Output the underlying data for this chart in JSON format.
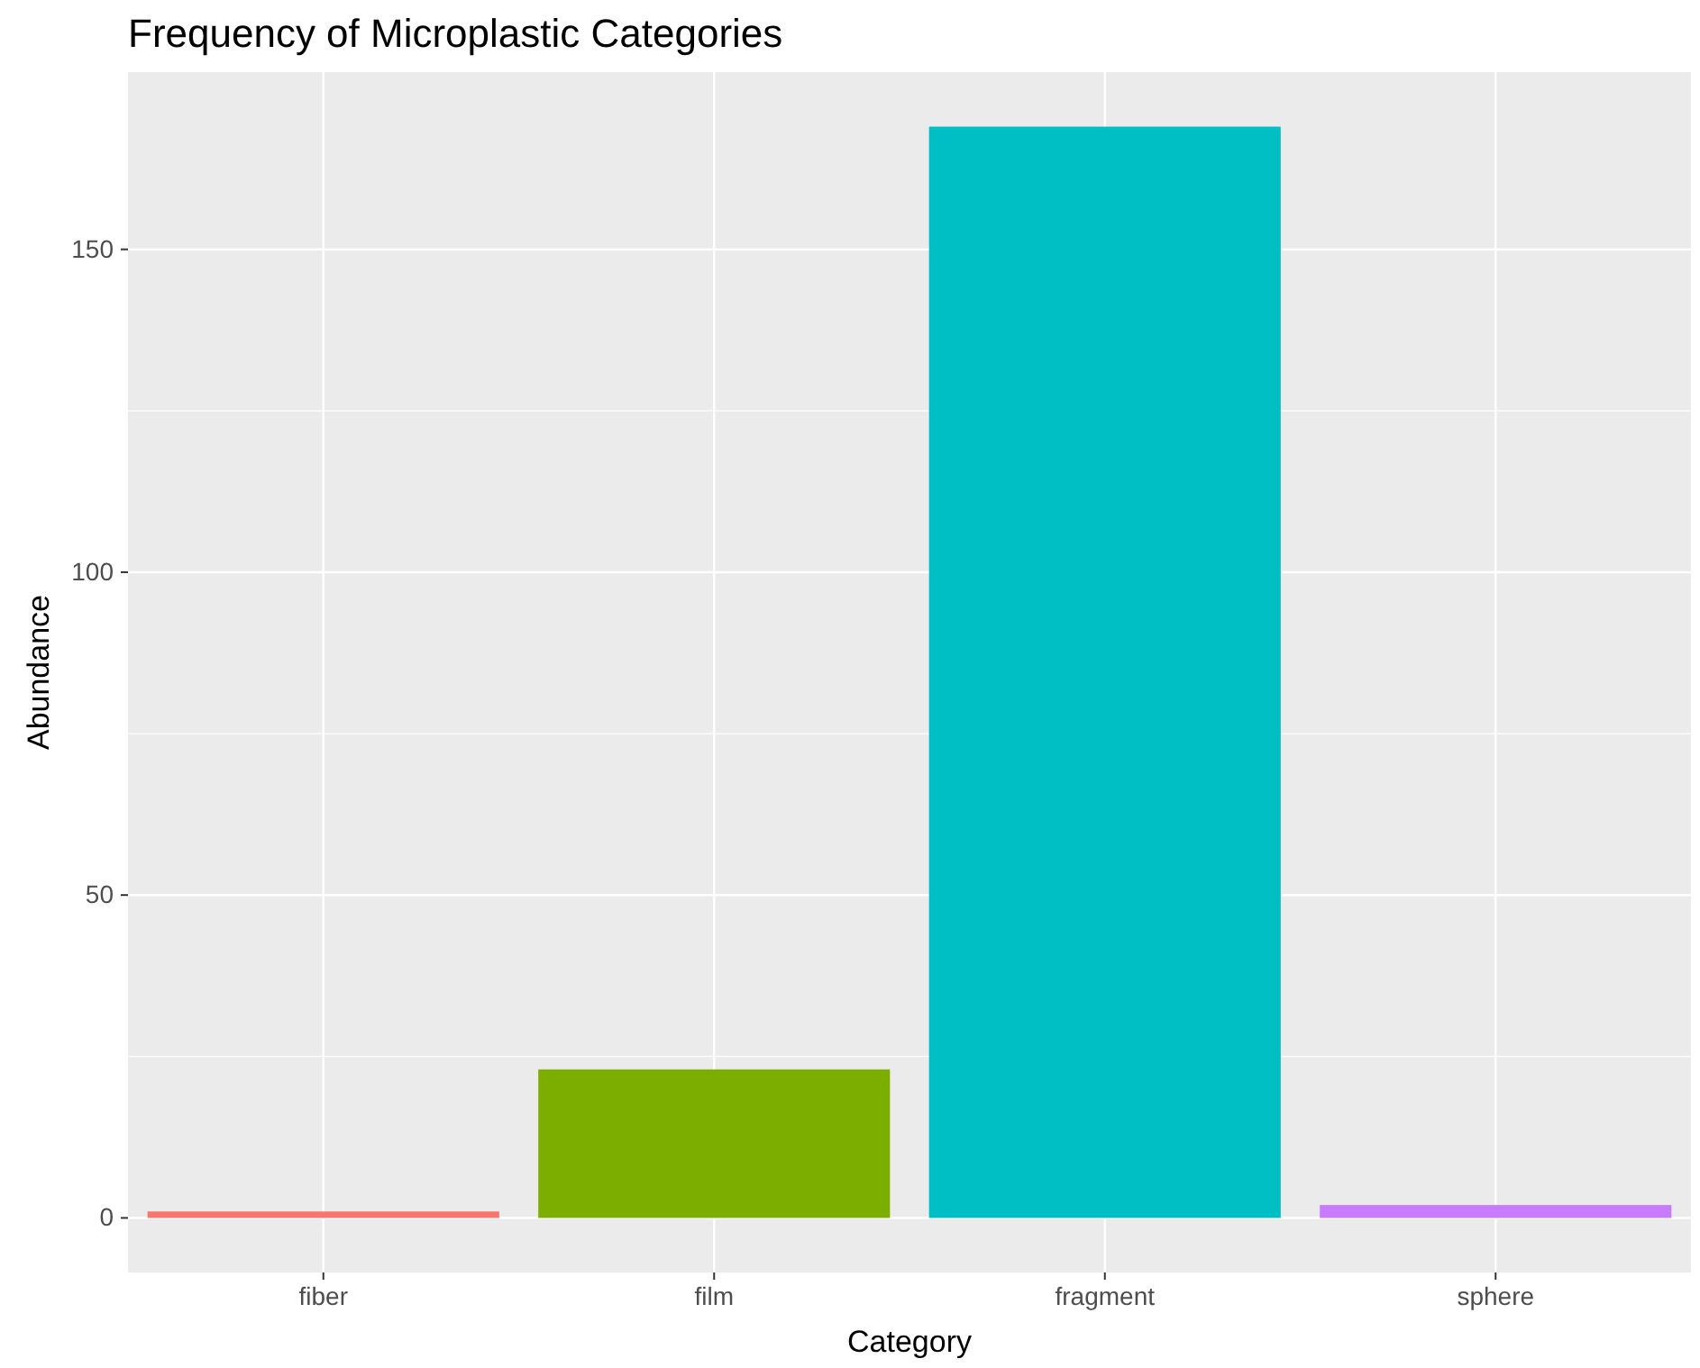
{
  "chart_data": {
    "type": "bar",
    "title": "Frequency of Microplastic Categories",
    "xlabel": "Category",
    "ylabel": "Abundance",
    "categories": [
      "fiber",
      "film",
      "fragment",
      "sphere"
    ],
    "values": [
      1,
      23,
      169,
      2
    ],
    "colors": [
      "#f8766d",
      "#7cae00",
      "#00bfc4",
      "#c77cff"
    ],
    "ylim": [
      -8.45,
      177.45
    ],
    "yticks": [
      0,
      50,
      100,
      150
    ],
    "grid": true
  }
}
